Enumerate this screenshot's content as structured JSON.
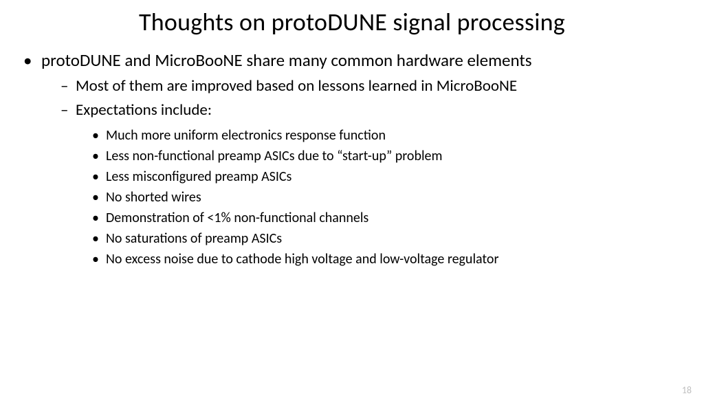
{
  "title": "Thoughts on protoDUNE signal processing",
  "page_number": "18",
  "colors": {
    "background": "#ffffff",
    "text": "#000000",
    "page_num": "#bfbfbf"
  },
  "typography": {
    "title_fontsize": 36,
    "lvl1_fontsize": 25,
    "lvl2_fontsize": 23,
    "lvl3_fontsize": 20,
    "font_family": "Calibri"
  },
  "bullets": {
    "lvl1": [
      {
        "text": "protoDUNE and MicroBooNE share many common hardware elements",
        "lvl2": [
          {
            "text": "Most of them are improved based on lessons learned in MicroBooNE",
            "lvl3": []
          },
          {
            "text": "Expectations include:",
            "lvl3": [
              "Much more uniform electronics response function",
              "Less non-functional preamp ASICs due to “start-up” problem",
              "Less misconfigured preamp ASICs",
              "No shorted wires",
              "Demonstration of <1% non-functional channels",
              "No saturations of preamp ASICs",
              "No excess noise due to cathode high voltage and low-voltage regulator"
            ]
          }
        ]
      }
    ]
  }
}
